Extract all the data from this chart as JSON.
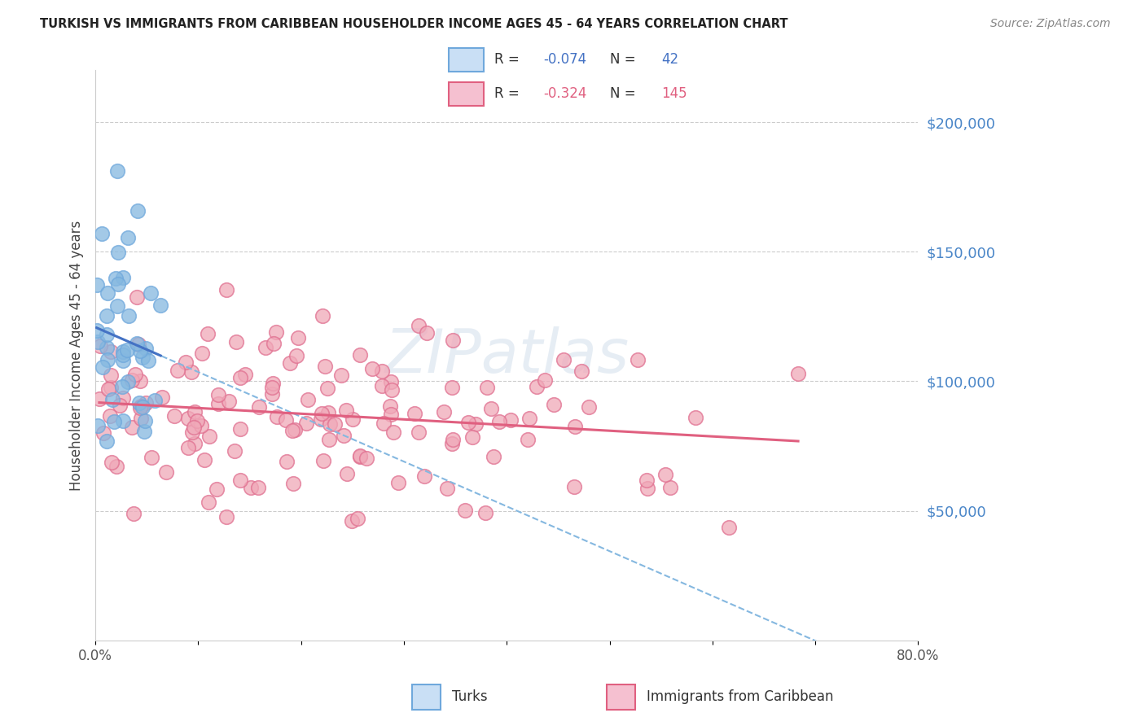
{
  "title": "TURKISH VS IMMIGRANTS FROM CARIBBEAN HOUSEHOLDER INCOME AGES 45 - 64 YEARS CORRELATION CHART",
  "source": "Source: ZipAtlas.com",
  "ylabel": "Householder Income Ages 45 - 64 years",
  "xmin": 0.0,
  "xmax": 80.0,
  "ymin": 0,
  "ymax": 220000,
  "ytick_vals": [
    50000,
    100000,
    150000,
    200000
  ],
  "ytick_labels": [
    "$50,000",
    "$100,000",
    "$150,000",
    "$200,000"
  ],
  "turks_color": "#85b8e0",
  "turks_edge_color": "#6fa8dc",
  "caribbean_color": "#f0a8b8",
  "caribbean_edge_color": "#e07090",
  "turks_line_color": "#4472c4",
  "turks_dashed_color": "#85b8e0",
  "caribbean_line_color": "#e06080",
  "background_color": "#ffffff",
  "grid_color": "#cccccc",
  "right_axis_color": "#4a86c8",
  "turks_R": -0.074,
  "turks_N": 42,
  "caribbean_R": -0.324,
  "caribbean_N": 145,
  "legend_blue_face": "#c9dff5",
  "legend_blue_edge": "#6fa8dc",
  "legend_pink_face": "#f5c0d0",
  "legend_pink_edge": "#e06080"
}
